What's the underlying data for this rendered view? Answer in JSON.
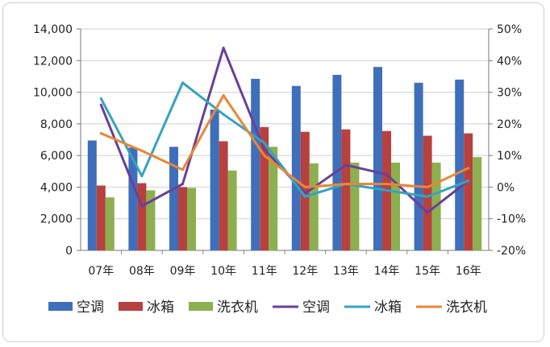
{
  "chart_data": {
    "type": "bar+line",
    "categories": [
      "07年",
      "08年",
      "09年",
      "10年",
      "11年",
      "12年",
      "13年",
      "14年",
      "15年",
      "16年"
    ],
    "y_left": {
      "min": 0,
      "max": 14000,
      "ticks": [
        "0",
        "2,000",
        "4,000",
        "6,000",
        "8,000",
        "10,000",
        "12,000",
        "14,000"
      ],
      "tick_values": [
        0,
        2000,
        4000,
        6000,
        8000,
        10000,
        12000,
        14000
      ]
    },
    "y_right": {
      "min": -20,
      "max": 50,
      "ticks": [
        "-20%",
        "-10%",
        "0%",
        "10%",
        "20%",
        "30%",
        "40%",
        "50%"
      ],
      "tick_values": [
        -20,
        -10,
        0,
        10,
        20,
        30,
        40,
        50
      ]
    },
    "grid": "horizontal",
    "legend_position": "bottom",
    "bar_series": [
      {
        "name": "空调",
        "color": "#3f6fba",
        "values": [
          6950,
          6500,
          6550,
          8900,
          10850,
          10400,
          11100,
          11600,
          10600,
          10800
        ]
      },
      {
        "name": "冰箱",
        "color": "#b7413e",
        "values": [
          4100,
          4250,
          4000,
          6900,
          7800,
          7500,
          7650,
          7550,
          7250,
          7400
        ]
      },
      {
        "name": "洗衣机",
        "color": "#8cb04f",
        "values": [
          3350,
          3800,
          3950,
          5050,
          6550,
          5500,
          5550,
          5550,
          5550,
          5900
        ]
      }
    ],
    "line_series": [
      {
        "name": "空调",
        "color": "#6a3f98",
        "values": [
          26,
          -6,
          1,
          44,
          12,
          -2,
          7,
          4,
          -8,
          2
        ]
      },
      {
        "name": "冰箱",
        "color": "#34a3c0",
        "values": [
          28,
          3.5,
          33,
          23,
          14,
          -3,
          1,
          -1,
          -3,
          2
        ]
      },
      {
        "name": "洗衣机",
        "color": "#ea8636",
        "values": [
          17,
          11.5,
          5.5,
          29,
          10,
          0,
          1,
          1,
          0,
          6
        ]
      }
    ]
  }
}
